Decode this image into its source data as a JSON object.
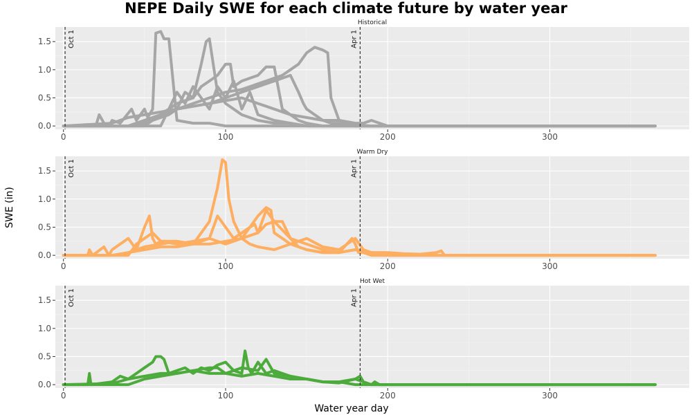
{
  "chart_data": {
    "type": "line",
    "title": "NEPE Daily SWE for each climate future by water year",
    "xlabel": "Water year day",
    "ylabel": "SWE (in)",
    "xlim": [
      -5,
      386
    ],
    "ylim": [
      -0.06,
      1.76
    ],
    "x_ticks": [
      0,
      100,
      200,
      300
    ],
    "y_ticks": [
      0.0,
      0.5,
      1.0,
      1.5
    ],
    "x_tick_labels": [
      "0",
      "100",
      "200",
      "300"
    ],
    "y_tick_labels": [
      "0.0",
      "0.5",
      "1.0",
      "1.5"
    ],
    "grid": true,
    "reference_lines": [
      {
        "x": 1,
        "label": "Oct 1"
      },
      {
        "x": 183,
        "label": "Apr 1"
      }
    ],
    "facets": [
      {
        "label": "Historical",
        "color": "#a6a6a6",
        "series": [
          {
            "x": [
              0,
              20,
              22,
              25,
              28,
              30,
              35,
              42,
              45,
              50,
              52,
              55,
              57,
              60,
              62,
              65,
              70,
              80,
              90,
              100,
              110,
              120,
              130,
              140,
              150,
              160,
              165,
              170,
              180,
              190,
              200,
              210,
              365
            ],
            "values": [
              0,
              0,
              0.2,
              0.05,
              0,
              0.1,
              0.05,
              0.3,
              0.1,
              0.3,
              0.15,
              0.3,
              1.65,
              1.68,
              1.55,
              1.55,
              0.1,
              0.05,
              0.05,
              0,
              0,
              0,
              0,
              0,
              0,
              0,
              0,
              0,
              0,
              0,
              0,
              0,
              0
            ]
          },
          {
            "x": [
              0,
              40,
              50,
              60,
              62,
              65,
              70,
              80,
              85,
              88,
              90,
              95,
              100,
              105,
              110,
              120,
              130,
              140,
              150,
              160,
              170,
              180,
              190,
              200,
              365
            ],
            "values": [
              0,
              0,
              0.1,
              0.2,
              0.25,
              0.3,
              0.4,
              0.5,
              1.1,
              1.5,
              1.55,
              0.6,
              0.4,
              0.3,
              0.2,
              0.1,
              0.05,
              0.05,
              0,
              0,
              0,
              0,
              0,
              0,
              0
            ]
          },
          {
            "x": [
              0,
              45,
              55,
              65,
              70,
              75,
              80,
              85,
              90,
              95,
              100,
              103,
              105,
              110,
              120,
              125,
              130,
              135,
              140,
              145,
              150,
              160,
              170,
              180,
              190,
              200,
              365
            ],
            "values": [
              0,
              0,
              0.1,
              0.2,
              0.3,
              0.6,
              0.5,
              0.7,
              0.8,
              0.9,
              1.1,
              1.1,
              0.7,
              0.8,
              0.9,
              1.05,
              1.05,
              0.3,
              0.2,
              0.1,
              0.05,
              0,
              0,
              0,
              0,
              0,
              0
            ]
          },
          {
            "x": [
              0,
              50,
              60,
              70,
              80,
              90,
              100,
              110,
              115,
              120,
              125,
              130,
              135,
              140,
              145,
              150,
              155,
              160,
              163,
              165,
              170,
              180,
              190,
              200,
              365
            ],
            "values": [
              0,
              0,
              0.2,
              0.3,
              0.4,
              0.5,
              0.6,
              0.65,
              0.7,
              0.75,
              0.8,
              0.85,
              0.9,
              1.0,
              1.1,
              1.3,
              1.4,
              1.35,
              1.3,
              0.5,
              0.1,
              0,
              0,
              0,
              0
            ]
          },
          {
            "x": [
              0,
              40,
              50,
              60,
              70,
              80,
              90,
              100,
              110,
              120,
              130,
              140,
              145,
              148,
              150,
              155,
              160,
              165,
              170,
              175,
              180,
              190,
              200,
              365
            ],
            "values": [
              0,
              0,
              0.1,
              0.2,
              0.3,
              0.35,
              0.4,
              0.5,
              0.6,
              0.7,
              0.8,
              0.9,
              0.6,
              0.4,
              0.3,
              0.2,
              0.1,
              0.05,
              0.05,
              0.05,
              0.02,
              0,
              0,
              0
            ]
          },
          {
            "x": [
              0,
              30,
              40,
              50,
              60,
              70,
              80,
              90,
              100,
              110,
              120,
              130,
              140,
              150,
              160,
              170,
              180,
              185,
              190,
              195,
              200,
              365
            ],
            "values": [
              0,
              0.05,
              0.15,
              0.2,
              0.25,
              0.3,
              0.35,
              0.4,
              0.45,
              0.5,
              0.4,
              0.3,
              0.2,
              0.15,
              0.1,
              0.1,
              0.05,
              0.05,
              0.1,
              0.05,
              0,
              0
            ]
          },
          {
            "x": [
              0,
              60,
              65,
              70,
              75,
              80,
              85,
              90,
              95,
              100,
              105,
              110,
              115,
              120,
              130,
              140,
              150,
              160,
              170,
              180,
              365
            ],
            "values": [
              0,
              0,
              0.3,
              0.6,
              0.4,
              0.7,
              0.5,
              0.3,
              0.7,
              0.5,
              0.8,
              0.3,
              0.6,
              0.2,
              0.1,
              0.05,
              0,
              0,
              0,
              0,
              0
            ]
          }
        ]
      },
      {
        "label": "Warm Dry",
        "color": "#fdae61",
        "series": [
          {
            "x": [
              0,
              15,
              16,
              18,
              25,
              28,
              30,
              40,
              45,
              50,
              53,
              55,
              57,
              60,
              70,
              80,
              90,
              95,
              98,
              100,
              102,
              105,
              110,
              115,
              120,
              130,
              140,
              150,
              160,
              170,
              180,
              185,
              190,
              200,
              210,
              220,
              230,
              233,
              235,
              365
            ],
            "values": [
              0,
              0,
              0.1,
              0,
              0.15,
              0,
              0.1,
              0.3,
              0.1,
              0.5,
              0.7,
              0.3,
              0.2,
              0.25,
              0.25,
              0.2,
              0.6,
              1.2,
              1.7,
              1.65,
              1.0,
              0.6,
              0.3,
              0.2,
              0.15,
              0.1,
              0.2,
              0.3,
              0.15,
              0.1,
              0.3,
              0.1,
              0.05,
              0.05,
              0.03,
              0.02,
              0.05,
              0.08,
              0,
              0
            ]
          },
          {
            "x": [
              0,
              40,
              45,
              50,
              55,
              60,
              70,
              80,
              90,
              95,
              100,
              105,
              110,
              115,
              120,
              125,
              128,
              130,
              135,
              140,
              150,
              160,
              170,
              180,
              190,
              200,
              365
            ],
            "values": [
              0,
              0,
              0.2,
              0.3,
              0.4,
              0.25,
              0.2,
              0.25,
              0.3,
              0.7,
              0.5,
              0.3,
              0.4,
              0.5,
              0.7,
              0.85,
              0.8,
              0.4,
              0.3,
              0.2,
              0.1,
              0.05,
              0.05,
              0.1,
              0.05,
              0,
              0
            ]
          },
          {
            "x": [
              0,
              35,
              40,
              50,
              60,
              70,
              80,
              90,
              100,
              110,
              115,
              118,
              120,
              125,
              130,
              135,
              140,
              145,
              150,
              160,
              170,
              180,
              185,
              190,
              200,
              365
            ],
            "values": [
              0,
              0,
              0.05,
              0.15,
              0.2,
              0.25,
              0.2,
              0.3,
              0.2,
              0.3,
              0.5,
              0.55,
              0.4,
              0.55,
              0.6,
              0.6,
              0.3,
              0.15,
              0.1,
              0.05,
              0.05,
              0.1,
              0.05,
              0,
              0,
              0
            ]
          },
          {
            "x": [
              0,
              30,
              40,
              50,
              60,
              70,
              80,
              90,
              100,
              110,
              120,
              125,
              130,
              140,
              150,
              160,
              170,
              178,
              180,
              182,
              185,
              190,
              200,
              365
            ],
            "values": [
              0,
              0,
              0.05,
              0.1,
              0.15,
              0.15,
              0.2,
              0.2,
              0.25,
              0.3,
              0.4,
              0.8,
              0.6,
              0.3,
              0.2,
              0.1,
              0.05,
              0.3,
              0.2,
              0.05,
              0.05,
              0,
              0,
              0
            ]
          }
        ]
      },
      {
        "label": "Hot Wet",
        "color": "#4daa3c",
        "series": [
          {
            "x": [
              0,
              15,
              16,
              17,
              30,
              35,
              40,
              45,
              50,
              55,
              57,
              60,
              62,
              65,
              70,
              75,
              80,
              85,
              90,
              95,
              100,
              105,
              110,
              112,
              114,
              116,
              120,
              125,
              130,
              135,
              140,
              145,
              150,
              160,
              170,
              180,
              183,
              185,
              190,
              192,
              195,
              365
            ],
            "values": [
              0,
              0,
              0.2,
              0,
              0.05,
              0.15,
              0.1,
              0.2,
              0.3,
              0.4,
              0.5,
              0.5,
              0.45,
              0.2,
              0.25,
              0.3,
              0.2,
              0.3,
              0.25,
              0.35,
              0.4,
              0.25,
              0.2,
              0.6,
              0.3,
              0.2,
              0.4,
              0.2,
              0.25,
              0.2,
              0.15,
              0.1,
              0.1,
              0.05,
              0.05,
              0.1,
              0.15,
              0.05,
              0,
              0.05,
              0,
              0
            ]
          },
          {
            "x": [
              0,
              30,
              40,
              50,
              60,
              70,
              80,
              90,
              100,
              110,
              120,
              130,
              140,
              150,
              160,
              170,
              180,
              185,
              190,
              365
            ],
            "values": [
              0,
              0.02,
              0.1,
              0.15,
              0.2,
              0.2,
              0.25,
              0.2,
              0.2,
              0.15,
              0.2,
              0.15,
              0.1,
              0.1,
              0.05,
              0.03,
              0.1,
              0.05,
              0,
              0
            ]
          },
          {
            "x": [
              0,
              40,
              50,
              60,
              70,
              80,
              90,
              95,
              100,
              110,
              120,
              125,
              130,
              140,
              150,
              160,
              170,
              180,
              365
            ],
            "values": [
              0,
              0,
              0.1,
              0.15,
              0.2,
              0.25,
              0.3,
              0.3,
              0.2,
              0.3,
              0.25,
              0.45,
              0.2,
              0.15,
              0.1,
              0.05,
              0.05,
              0,
              0
            ]
          }
        ]
      }
    ]
  }
}
